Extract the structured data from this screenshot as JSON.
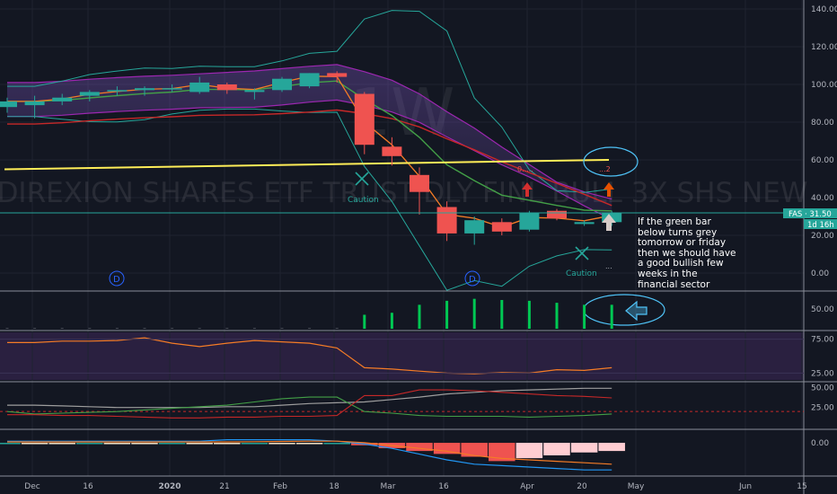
{
  "colors": {
    "background": "#131722",
    "up": "#26a69a",
    "down": "#ef5350",
    "panel_rsi": "#2a2040",
    "grid": "#2a2e39",
    "orange": "#f57c26",
    "yellow": "#ffee58",
    "purple": "#9c27b0",
    "teal_band": "#26a69a"
  },
  "ticker_watermark": "DIREXION SHARES ETF TRUST DLY FINL BULL 3X SHS NEW",
  "timeframe_watermark": "1W",
  "price_tag": "FAS · 31.50",
  "countdown_tag": "1d 16h",
  "annotation": "If the green bar below turns grey tomorrow or friday then we should have a good bullish few weeks in the financial sector",
  "caution_labels": [
    "Caution",
    "Caution"
  ],
  "dividend_markers": [
    "D",
    "D"
  ],
  "signal_texts": [
    "0.....",
    "...2",
    "..."
  ],
  "chart_data": {
    "type": "candlestick",
    "x_ticks": [
      "Dec",
      "16",
      "2020",
      "21",
      "Feb",
      "18",
      "Mar",
      "16",
      "Apr",
      "20",
      "May",
      "Jun",
      "15"
    ],
    "price_ticks": [
      "140.00",
      "120.00",
      "100.00",
      "80.00",
      "60.00",
      "40.00",
      "20.00",
      "0.00"
    ],
    "price_ylim": [
      -10,
      145
    ],
    "candles": [
      {
        "o": 88,
        "h": 93,
        "l": 85,
        "c": 91
      },
      {
        "o": 89,
        "h": 94,
        "l": 82,
        "c": 91
      },
      {
        "o": 91,
        "h": 95,
        "l": 89,
        "c": 93
      },
      {
        "o": 94,
        "h": 97,
        "l": 91,
        "c": 96
      },
      {
        "o": 97,
        "h": 99,
        "l": 94,
        "c": 97
      },
      {
        "o": 97,
        "h": 99,
        "l": 94,
        "c": 98
      },
      {
        "o": 98,
        "h": 100,
        "l": 96,
        "c": 98
      },
      {
        "o": 96,
        "h": 104,
        "l": 95,
        "c": 101
      },
      {
        "o": 100,
        "h": 101,
        "l": 95,
        "c": 97
      },
      {
        "o": 96,
        "h": 98,
        "l": 92,
        "c": 97
      },
      {
        "o": 97,
        "h": 104,
        "l": 96,
        "c": 103
      },
      {
        "o": 99,
        "h": 106,
        "l": 98,
        "c": 106
      },
      {
        "o": 106,
        "h": 107,
        "l": 101,
        "c": 104
      },
      {
        "o": 95,
        "h": 96,
        "l": 63,
        "c": 68
      },
      {
        "o": 67,
        "h": 72,
        "l": 57,
        "c": 62
      },
      {
        "o": 52,
        "h": 56,
        "l": 31,
        "c": 43
      },
      {
        "o": 35,
        "h": 38,
        "l": 17,
        "c": 21
      },
      {
        "o": 21,
        "h": 30,
        "l": 15,
        "c": 28
      },
      {
        "o": 27,
        "h": 29,
        "l": 20,
        "c": 22
      },
      {
        "o": 23,
        "h": 33,
        "l": 22,
        "c": 32
      },
      {
        "o": 33,
        "h": 34,
        "l": 28,
        "c": 29
      },
      {
        "o": 26,
        "h": 28,
        "l": 25,
        "c": 27
      },
      {
        "o": 27,
        "h": 33,
        "l": 25,
        "c": 32
      }
    ],
    "volume_tick": "50.00",
    "volume_ylim": [
      0,
      90
    ],
    "volume": [
      2,
      2,
      2,
      2,
      2,
      2,
      2,
      2,
      2,
      2,
      2,
      2,
      2,
      35,
      40,
      60,
      70,
      75,
      72,
      70,
      65,
      60,
      60
    ],
    "rsi_ticks": [
      "75.00",
      "25.00"
    ],
    "rsi_ylim": [
      15,
      85
    ],
    "rsi": [
      70,
      70,
      72,
      72,
      73,
      77,
      69,
      64,
      69,
      73,
      71,
      69,
      62,
      33,
      31,
      28,
      25,
      24,
      26,
      25,
      30,
      29,
      33
    ],
    "dmi_ticks": [
      "50.00",
      "25.00"
    ],
    "dmi_ylim": [
      0,
      55
    ],
    "dmi_plus": [
      20,
      17,
      18,
      19,
      20,
      22,
      24,
      26,
      28,
      32,
      36,
      38,
      38,
      20,
      18,
      15,
      14,
      14,
      14,
      13,
      14,
      15,
      17
    ],
    "dmi_minus": [
      16,
      16,
      15,
      15,
      14,
      13,
      12,
      12,
      13,
      13,
      14,
      14,
      15,
      40,
      40,
      47,
      47,
      46,
      44,
      42,
      40,
      39,
      37
    ],
    "adx": [
      28,
      28,
      27,
      26,
      25,
      25,
      25,
      25,
      26,
      26,
      28,
      30,
      31,
      32,
      35,
      38,
      42,
      44,
      46,
      47,
      48,
      49,
      49
    ],
    "macd_tick": "0.00",
    "macd_ylim": [
      -22,
      8
    ],
    "macd_hist": [
      -1,
      -1,
      -1,
      -1,
      -1,
      -1,
      -1,
      -1,
      -1,
      -1,
      -1,
      -1,
      -1,
      -2,
      -4,
      -6,
      -8,
      -10,
      -13,
      -11,
      -9,
      -7,
      -6
    ],
    "macd_line": [
      1,
      1,
      1,
      1,
      1,
      1,
      1,
      1,
      2,
      2,
      2,
      2,
      1,
      -1,
      -4,
      -8,
      -12,
      -15,
      -16,
      -17,
      -18,
      -19,
      -19
    ],
    "macd_signal": [
      0.5,
      0.5,
      0.5,
      0.5,
      0.5,
      0.5,
      0.5,
      0.5,
      0.5,
      0.6,
      0.8,
      1,
      1,
      0,
      -2,
      -4,
      -6,
      -9,
      -11,
      -12,
      -13,
      -14,
      -15
    ]
  }
}
